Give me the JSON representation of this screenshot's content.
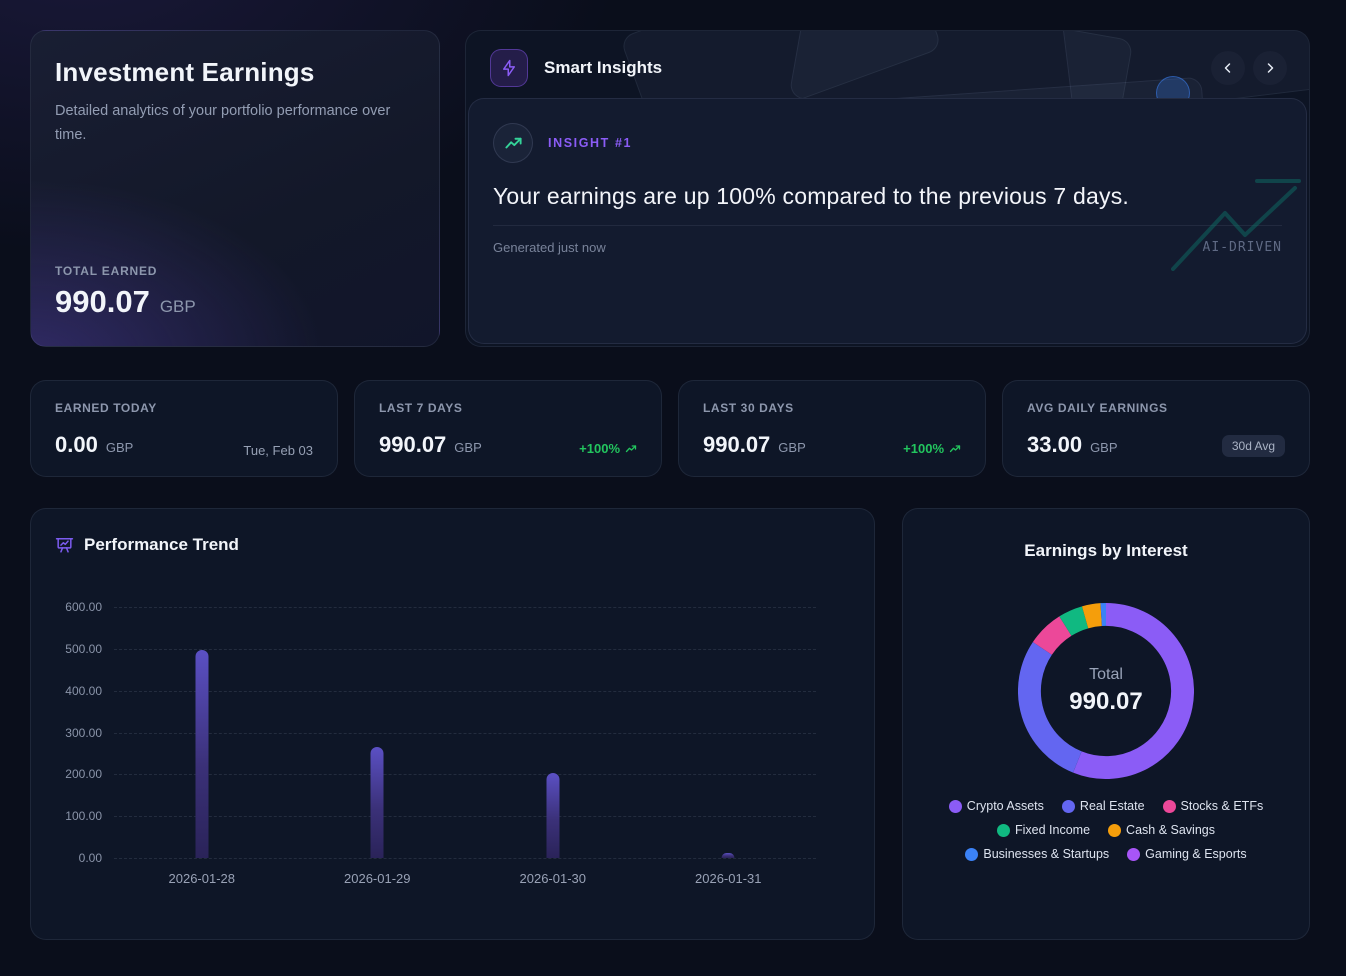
{
  "hero": {
    "title": "Investment Earnings",
    "description": "Detailed analytics of your portfolio performance over time.",
    "total_earned_label": "TOTAL EARNED",
    "total_earned_value": "990.07",
    "total_earned_currency": "GBP"
  },
  "insights": {
    "title": "Smart Insights",
    "badge": "INSIGHT #1",
    "message": "Your earnings are up 100% compared to the previous 7 days.",
    "generated_text": "Generated just now",
    "tag": "AI-DRIVEN"
  },
  "stats": [
    {
      "label": "EARNED TODAY",
      "value": "0.00",
      "currency": "GBP",
      "extra": "Tue, Feb 03"
    },
    {
      "label": "LAST 7 DAYS",
      "value": "990.07",
      "currency": "GBP",
      "extra": "+100%"
    },
    {
      "label": "LAST 30 DAYS",
      "value": "990.07",
      "currency": "GBP",
      "extra": "+100%"
    },
    {
      "label": "AVG DAILY EARNINGS",
      "value": "33.00",
      "currency": "GBP",
      "extra": "30d Avg"
    }
  ],
  "colors": {
    "accent_purple": "#8b5cf6",
    "positive_green": "#22c55e",
    "bar_indigo": "#4c3f9e"
  },
  "chart_data": [
    {
      "type": "bar",
      "title": "Performance Trend",
      "categories": [
        "2026-01-28",
        "2026-01-29",
        "2026-01-30",
        "2026-01-31"
      ],
      "values": [
        498,
        265,
        204,
        13
      ],
      "xlabel": "",
      "ylabel": "",
      "ylim": [
        0,
        600
      ],
      "yticks": [
        "600.00",
        "500.00",
        "400.00",
        "300.00",
        "200.00",
        "100.00",
        "0.00"
      ],
      "grid": "horizontal-dashed",
      "legend_position": "none"
    },
    {
      "type": "pie",
      "subtype": "donut",
      "title": "Earnings by Interest",
      "center_label": "Total",
      "center_value": "990.07",
      "segments": [
        {
          "label": "Crypto Assets",
          "value": 555,
          "percent": 56.1,
          "color": "#8b5cf6"
        },
        {
          "label": "Real Estate",
          "value": 280,
          "percent": 28.3,
          "color": "#6366f1"
        },
        {
          "label": "Stocks & ETFs",
          "value": 66,
          "percent": 6.7,
          "color": "#ec4899"
        },
        {
          "label": "Fixed Income",
          "value": 45,
          "percent": 4.5,
          "color": "#10b981"
        },
        {
          "label": "Cash & Savings",
          "value": 34,
          "percent": 3.4,
          "color": "#f59e0b"
        },
        {
          "label": "Businesses & Startups",
          "value": 10,
          "percent": 1.0,
          "color": "#3b82f6"
        },
        {
          "label": "Gaming & Esports",
          "value": 0,
          "percent": 0,
          "color": "#a855f7"
        }
      ],
      "legend_position": "bottom"
    }
  ]
}
